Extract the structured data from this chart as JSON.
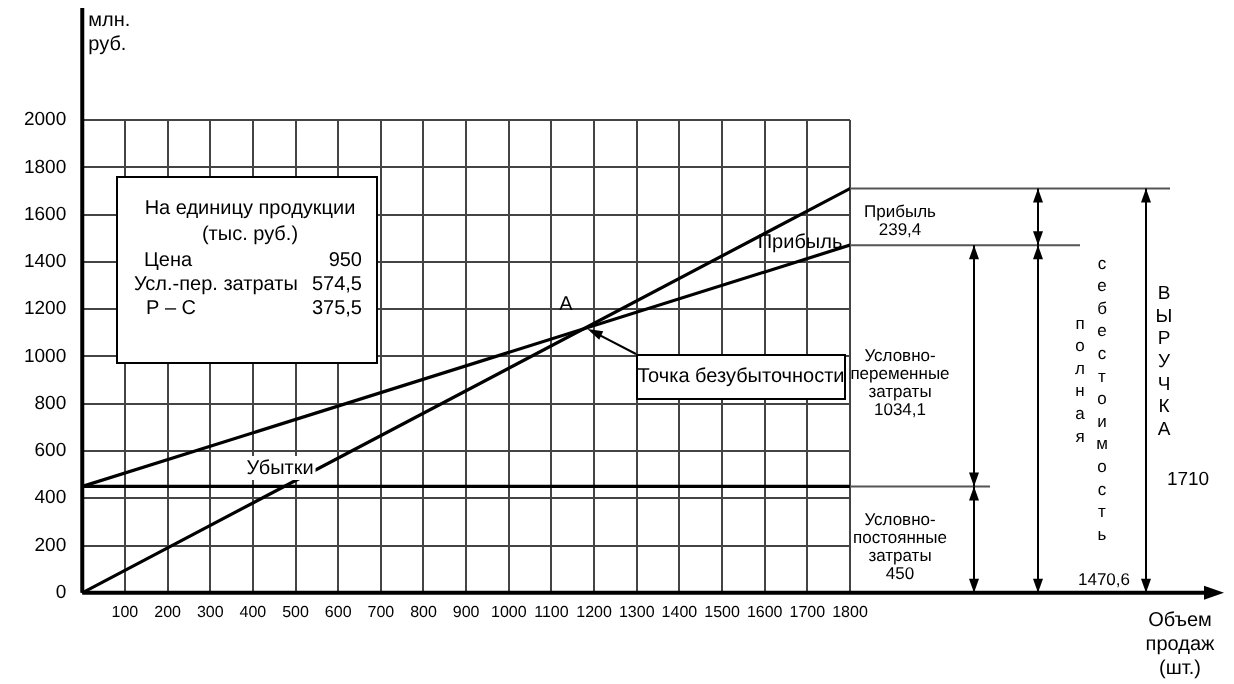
{
  "chart_data": {
    "type": "line",
    "ylabel": "млн.\nруб.",
    "x": [
      0,
      1800
    ],
    "series": [
      {
        "color": "#000000",
        "values": [
          0,
          1710
        ]
      },
      {
        "color": "#000000",
        "values": [
          450,
          1470.6
        ]
      },
      {
        "color": "#000000",
        "values": [
          450,
          450
        ]
      }
    ],
    "xlim": [
      0,
      1800
    ],
    "xticks": [
      {
        "value": 0,
        "label": null
      },
      100,
      200,
      300,
      400,
      500,
      600,
      700,
      800,
      900,
      1000,
      1100,
      1200,
      1300,
      1400,
      1500,
      1600,
      1700,
      1800
    ],
    "ylim": [
      0,
      2000
    ],
    "yticks": [
      0,
      200,
      400,
      600,
      800,
      1000,
      1200,
      1400,
      1600,
      1800,
      2000
    ],
    "grid": true,
    "annotations": [
      "A",
      {
        "text": "Точка безубыточности",
        "x": 1175,
        "y": 1116
      },
      "Прибыль",
      "Убытки",
      "На единицу продукции",
      "(тыс. руб.)",
      "Цена",
      "950",
      "Усл.-пер. затраты",
      "574,5",
      "Р – С",
      "375,5",
      "Прибыль\n239,4",
      "Условно-\nпеременные\nзатраты\n1034,1",
      "Условно-\nпостоянные\nзатраты\n450",
      "полная",
      "себестоимость",
      "1470,6",
      "ВЫРУЧКА",
      "1710",
      "Объем\nпродаж\n(шт.)"
    ]
  }
}
